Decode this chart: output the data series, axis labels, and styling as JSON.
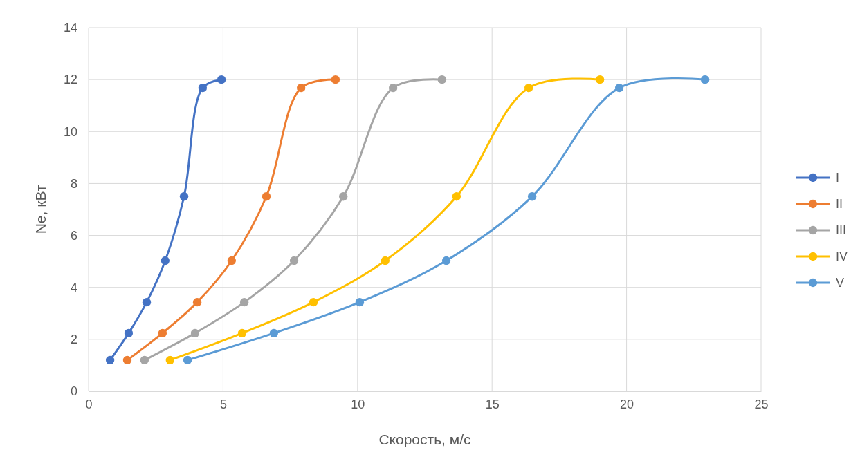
{
  "chart_data": {
    "type": "line",
    "xlabel": "Скорость, м/с",
    "ylabel": "Ne, кВт",
    "xlim": [
      0,
      25
    ],
    "xticks": [
      0,
      5,
      10,
      15,
      20,
      25
    ],
    "ylim": [
      0,
      14
    ],
    "yticks": [
      0,
      2,
      4,
      6,
      8,
      10,
      12,
      14
    ],
    "grid": true,
    "legend": "right",
    "marker": "circle",
    "line_style": "solid",
    "series": [
      {
        "name": "I",
        "color": "#4472c4",
        "x": [
          0.8,
          1.49,
          2.16,
          2.85,
          3.55,
          4.24,
          4.94
        ],
        "values": [
          1.2,
          2.24,
          3.43,
          5.03,
          7.5,
          11.68,
          12
        ]
      },
      {
        "name": "II",
        "color": "#ed7d31",
        "x": [
          1.44,
          2.75,
          4.04,
          5.32,
          6.61,
          7.9,
          9.18
        ],
        "values": [
          1.2,
          2.24,
          3.43,
          5.03,
          7.5,
          11.68,
          12
        ]
      },
      {
        "name": "III",
        "color": "#a5a5a5",
        "x": [
          2.08,
          3.96,
          5.79,
          7.64,
          9.47,
          11.32,
          13.14
        ],
        "values": [
          1.2,
          2.24,
          3.43,
          5.03,
          7.5,
          11.68,
          12
        ]
      },
      {
        "name": "IV",
        "color": "#ffc000",
        "x": [
          3.03,
          5.71,
          8.36,
          11.03,
          13.68,
          16.36,
          19.01
        ],
        "values": [
          1.2,
          2.24,
          3.43,
          5.03,
          7.5,
          11.68,
          12
        ]
      },
      {
        "name": "V",
        "color": "#5b9bd5",
        "x": [
          3.68,
          6.89,
          10.08,
          13.3,
          16.49,
          19.73,
          22.92
        ],
        "values": [
          1.2,
          2.24,
          3.43,
          5.03,
          7.5,
          11.68,
          12
        ]
      }
    ]
  }
}
